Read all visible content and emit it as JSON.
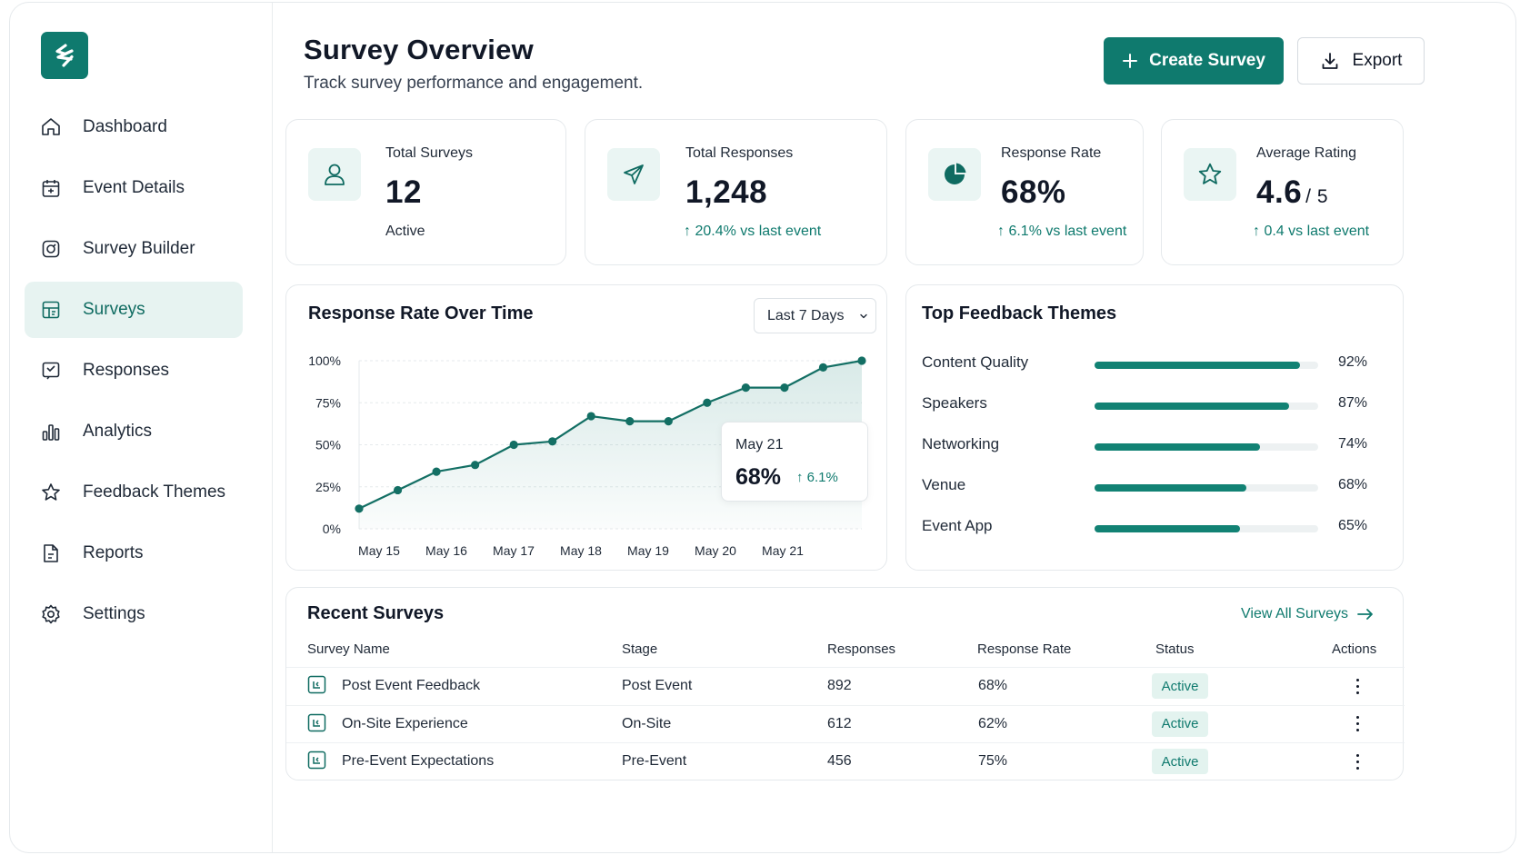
{
  "sidebar": {
    "items": [
      {
        "label": "Dashboard",
        "icon": "home-icon",
        "active": false
      },
      {
        "label": "Event Details",
        "icon": "calendar-icon",
        "active": false
      },
      {
        "label": "Survey Builder",
        "icon": "survey-builder-icon",
        "active": false
      },
      {
        "label": "Surveys",
        "icon": "survey-icon",
        "active": true
      },
      {
        "label": "Responses",
        "icon": "responses-icon",
        "active": false
      },
      {
        "label": "Analytics",
        "icon": "bar-chart-icon",
        "active": false
      },
      {
        "label": "Feedback Themes",
        "icon": "star-icon",
        "active": false
      },
      {
        "label": "Reports",
        "icon": "report-icon",
        "active": false
      },
      {
        "label": "Settings",
        "icon": "gear-icon",
        "active": false
      }
    ]
  },
  "header": {
    "title": "Survey Overview",
    "subtitle": "Track survey performance and engagement.",
    "create_label": "Create Survey",
    "export_label": "Export"
  },
  "stats": [
    {
      "label": "Total Surveys",
      "value": "12",
      "suffix": "",
      "foot": "Active",
      "trend": false,
      "icon": "user-icon"
    },
    {
      "label": "Total Responses",
      "value": "1,248",
      "suffix": "",
      "foot": "20.4% vs last event",
      "trend": true,
      "icon": "send-icon"
    },
    {
      "label": "Response Rate",
      "value": "68%",
      "suffix": "",
      "foot": "6.1% vs last event",
      "trend": true,
      "icon": "pie-icon"
    },
    {
      "label": "Average Rating",
      "value": "4.6",
      "suffix": "/ 5",
      "foot": "0.4 vs last event",
      "trend": true,
      "icon": "star-icon"
    }
  ],
  "chart": {
    "range_label": "Last 7 Days",
    "tooltip": {
      "date": "May 21",
      "value": "68%",
      "delta": "6.1%"
    }
  },
  "chart_data": {
    "type": "area",
    "title": "Response Rate Over Time",
    "xlabel": "",
    "ylabel": "",
    "x_ticks": [
      "May 15",
      "May 16",
      "May 17",
      "May 18",
      "May 19",
      "May 20",
      "May 21"
    ],
    "y_ticks": [
      "100%",
      "75%",
      "50%",
      "25%",
      "0%"
    ],
    "ylim": [
      0,
      100
    ],
    "grid": true,
    "series": [
      {
        "values": [
          12,
          23,
          34,
          38,
          50,
          52,
          67,
          64,
          64,
          75,
          84,
          84,
          96,
          100
        ]
      }
    ]
  },
  "themes": {
    "title": "Top Feedback Themes",
    "items": [
      {
        "label": "Content Quality",
        "value": 92,
        "display": "92%"
      },
      {
        "label": "Speakers",
        "value": 87,
        "display": "87%"
      },
      {
        "label": "Networking",
        "value": 74,
        "display": "74%"
      },
      {
        "label": "Venue",
        "value": 68,
        "display": "68%"
      },
      {
        "label": "Event App",
        "value": 65,
        "display": "65%"
      }
    ]
  },
  "recent": {
    "title": "Recent Surveys",
    "view_all": "View All Surveys",
    "columns": [
      "Survey Name",
      "Stage",
      "Responses",
      "Response Rate",
      "Status",
      "Actions"
    ],
    "rows": [
      {
        "name": "Post Event Feedback",
        "stage": "Post Event",
        "responses": "892",
        "rate": "68%",
        "status": "Active"
      },
      {
        "name": "On-Site Experience",
        "stage": "On-Site",
        "responses": "612",
        "rate": "62%",
        "status": "Active"
      },
      {
        "name": "Pre-Event Expectations",
        "stage": "Pre-Event",
        "responses": "456",
        "rate": "75%",
        "status": "Active"
      }
    ]
  },
  "colors": {
    "accent": "#0f7a6e",
    "accent_light": "#e7f3f1",
    "text": "#111827"
  }
}
